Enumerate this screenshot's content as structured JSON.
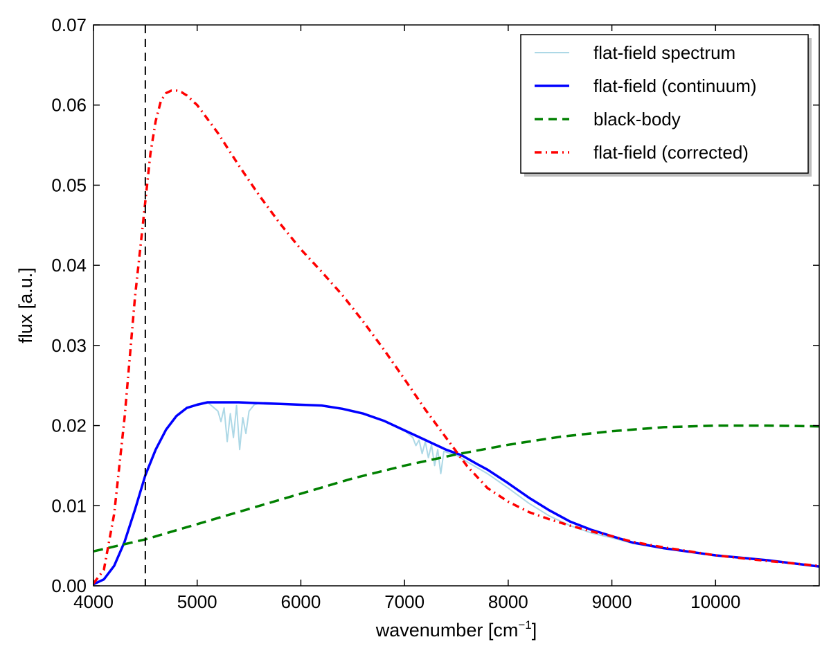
{
  "chart_data": {
    "type": "line",
    "title": "",
    "xlabel": "wavenumber [cm",
    "xlabel_sup": "−1",
    "xlabel_close": "]",
    "ylabel": "flux [a.u.]",
    "xlim": [
      4000,
      11000
    ],
    "ylim": [
      0,
      0.07
    ],
    "xticks": [
      4000,
      5000,
      6000,
      7000,
      8000,
      9000,
      10000
    ],
    "xtick_labels": [
      "4000",
      "5000",
      "6000",
      "7000",
      "8000",
      "9000",
      "10000"
    ],
    "yticks": [
      0,
      0.01,
      0.02,
      0.03,
      0.04,
      0.05,
      0.06,
      0.07
    ],
    "ytick_labels": [
      "0.00",
      "0.01",
      "0.02",
      "0.03",
      "0.04",
      "0.05",
      "0.06",
      "0.07"
    ],
    "grid": false,
    "legend_position": "top-right",
    "vertical_line": {
      "x": 4500,
      "color": "#000000",
      "style": "dashed"
    },
    "series": [
      {
        "name": "flat-field spectrum",
        "color": "#add8e6",
        "style": "solid",
        "x": [
          4000,
          4100,
          4200,
          4300,
          4400,
          4500,
          4600,
          4700,
          4800,
          4900,
          5000,
          5100,
          5200,
          5230,
          5260,
          5290,
          5320,
          5350,
          5380,
          5410,
          5440,
          5470,
          5500,
          5550,
          5600,
          5800,
          6000,
          6200,
          6400,
          6600,
          6800,
          7000,
          7080,
          7110,
          7140,
          7170,
          7200,
          7230,
          7260,
          7290,
          7320,
          7350,
          7380,
          7420,
          7500,
          7600,
          7800,
          8000,
          8200,
          8400,
          8600,
          8800,
          9000,
          9200,
          9500,
          10000,
          10500,
          11000
        ],
        "y": [
          0.0003,
          0.0008,
          0.0025,
          0.0055,
          0.0095,
          0.0138,
          0.017,
          0.0195,
          0.0212,
          0.0222,
          0.0227,
          0.0229,
          0.0218,
          0.0205,
          0.0222,
          0.018,
          0.0215,
          0.0185,
          0.0225,
          0.017,
          0.021,
          0.019,
          0.0218,
          0.0226,
          0.0228,
          0.0227,
          0.0226,
          0.0225,
          0.0221,
          0.0215,
          0.0206,
          0.0194,
          0.0185,
          0.0175,
          0.0182,
          0.0165,
          0.018,
          0.016,
          0.0176,
          0.015,
          0.017,
          0.014,
          0.0168,
          0.0166,
          0.0163,
          0.0155,
          0.014,
          0.0122,
          0.0103,
          0.0087,
          0.0075,
          0.0066,
          0.006,
          0.0053,
          0.0047,
          0.0038,
          0.0032,
          0.0024
        ]
      },
      {
        "name": "flat-field (continuum)",
        "color": "#0000ff",
        "style": "solid",
        "x": [
          4000,
          4100,
          4200,
          4300,
          4400,
          4500,
          4600,
          4700,
          4800,
          4900,
          5000,
          5100,
          5200,
          5400,
          5600,
          5800,
          6000,
          6200,
          6400,
          6600,
          6800,
          7000,
          7200,
          7400,
          7550,
          7700,
          7800,
          8000,
          8200,
          8400,
          8600,
          8800,
          9000,
          9200,
          9500,
          10000,
          10500,
          11000
        ],
        "y": [
          0.0002,
          0.0008,
          0.0025,
          0.0055,
          0.0095,
          0.0138,
          0.017,
          0.0195,
          0.0212,
          0.0222,
          0.0226,
          0.0229,
          0.0229,
          0.0229,
          0.0228,
          0.0227,
          0.0226,
          0.0225,
          0.0221,
          0.0215,
          0.0206,
          0.0194,
          0.0182,
          0.017,
          0.0163,
          0.0152,
          0.0145,
          0.0128,
          0.011,
          0.0094,
          0.008,
          0.007,
          0.0062,
          0.0054,
          0.0047,
          0.0038,
          0.0032,
          0.0024
        ]
      },
      {
        "name": "black-body",
        "color": "#008000",
        "style": "dashed",
        "x": [
          4000,
          4500,
          5000,
          5500,
          6000,
          6500,
          7000,
          7500,
          8000,
          8500,
          9000,
          9500,
          10000,
          10500,
          11000
        ],
        "y": [
          0.0043,
          0.0058,
          0.0077,
          0.0096,
          0.0115,
          0.0134,
          0.015,
          0.0164,
          0.0176,
          0.0186,
          0.0193,
          0.0198,
          0.02,
          0.02,
          0.0199
        ]
      },
      {
        "name": "flat-field (corrected)",
        "color": "#ff0000",
        "style": "dashdot",
        "x": [
          4000,
          4100,
          4200,
          4300,
          4400,
          4500,
          4550,
          4600,
          4650,
          4700,
          4750,
          4800,
          4850,
          4900,
          5000,
          5200,
          5400,
          5600,
          5800,
          6000,
          6200,
          6400,
          6600,
          6800,
          7000,
          7200,
          7400,
          7600,
          7800,
          8000,
          8200,
          8400,
          8600,
          8800,
          9000,
          9200,
          9500,
          10000,
          10500,
          11000
        ],
        "y": [
          0.0003,
          0.002,
          0.009,
          0.021,
          0.036,
          0.048,
          0.054,
          0.058,
          0.0605,
          0.0615,
          0.0618,
          0.0618,
          0.0616,
          0.0612,
          0.06,
          0.0565,
          0.0525,
          0.0487,
          0.0452,
          0.042,
          0.0392,
          0.0363,
          0.033,
          0.0295,
          0.0258,
          0.022,
          0.0185,
          0.015,
          0.0122,
          0.0105,
          0.0092,
          0.0083,
          0.0075,
          0.0068,
          0.0062,
          0.0055,
          0.0048,
          0.0038,
          0.0031,
          0.0025
        ]
      }
    ]
  }
}
